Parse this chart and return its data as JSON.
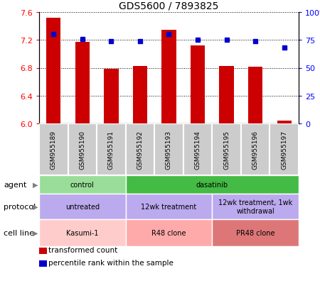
{
  "title": "GDS5600 / 7893825",
  "samples": [
    "GSM955189",
    "GSM955190",
    "GSM955191",
    "GSM955192",
    "GSM955193",
    "GSM955194",
    "GSM955195",
    "GSM955196",
    "GSM955197"
  ],
  "transformed_counts": [
    7.52,
    7.17,
    6.78,
    6.83,
    7.35,
    7.12,
    6.83,
    6.82,
    6.04
  ],
  "percentile_ranks": [
    80,
    76,
    74,
    74,
    80,
    75,
    75,
    74,
    68
  ],
  "ylim": [
    6.0,
    7.6
  ],
  "yticks_left": [
    6.0,
    6.4,
    6.8,
    7.2,
    7.6
  ],
  "yticks_right": [
    0,
    25,
    50,
    75,
    100
  ],
  "bar_color": "#cc0000",
  "dot_color": "#0000cc",
  "agent_groups": [
    {
      "label": "control",
      "start": 0,
      "end": 3,
      "color": "#99dd99"
    },
    {
      "label": "dasatinib",
      "start": 3,
      "end": 9,
      "color": "#44bb44"
    }
  ],
  "protocol_groups": [
    {
      "label": "untreated",
      "start": 0,
      "end": 3,
      "color": "#bbaaee"
    },
    {
      "label": "12wk treatment",
      "start": 3,
      "end": 6,
      "color": "#bbaaee"
    },
    {
      "label": "12wk treatment, 1wk\nwithdrawal",
      "start": 6,
      "end": 9,
      "color": "#bbaaee"
    }
  ],
  "cell_line_groups": [
    {
      "label": "Kasumi-1",
      "start": 0,
      "end": 3,
      "color": "#ffcccc"
    },
    {
      "label": "R48 clone",
      "start": 3,
      "end": 6,
      "color": "#ffaaaa"
    },
    {
      "label": "PR48 clone",
      "start": 6,
      "end": 9,
      "color": "#dd7777"
    }
  ],
  "row_labels": [
    "agent",
    "protocol",
    "cell line"
  ],
  "legend_items": [
    {
      "label": "transformed count",
      "color": "#cc0000"
    },
    {
      "label": "percentile rank within the sample",
      "color": "#0000cc"
    }
  ],
  "sample_label_bg": "#cccccc",
  "sample_label_border": "#ffffff"
}
